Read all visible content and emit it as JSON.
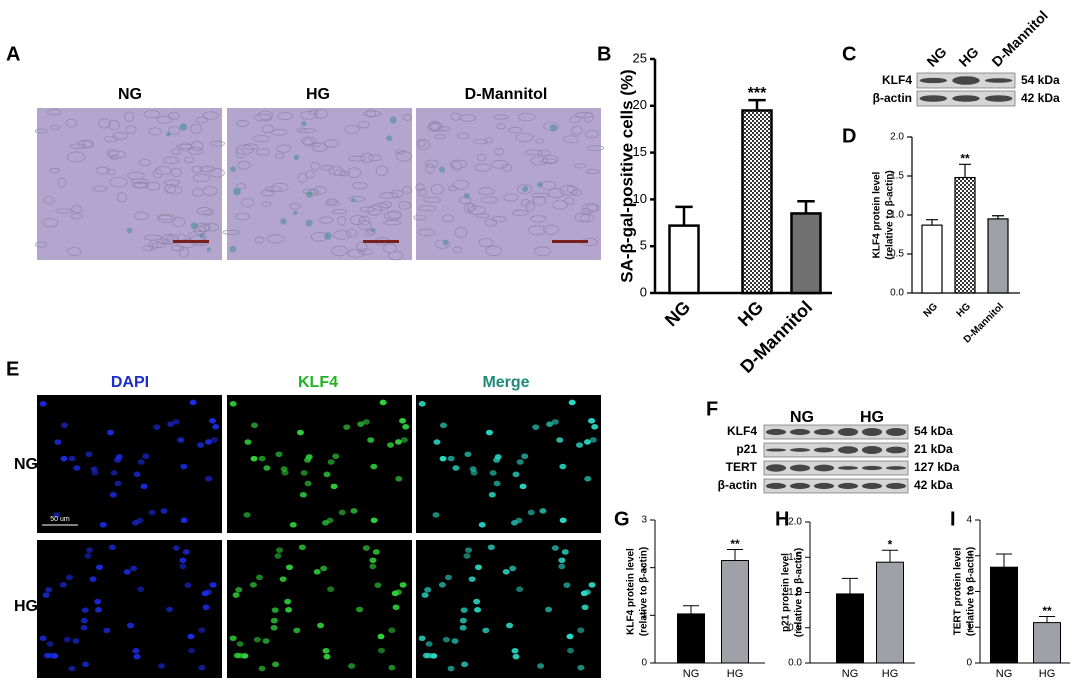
{
  "figure": {
    "A": {
      "label": "A",
      "titles": [
        "NG",
        "HG",
        "D-Mannitol"
      ]
    },
    "C": {
      "label": "C",
      "lanes": [
        "NG",
        "HG",
        "D-Mannitol"
      ],
      "bands": [
        "KLF4",
        "β-actin"
      ],
      "sizes": [
        "54 kDa",
        "42 kDa"
      ]
    },
    "E": {
      "label": "E",
      "stains": [
        "DAPI",
        "KLF4",
        "Merge"
      ],
      "rows": [
        "NG",
        "HG"
      ],
      "scale": "50 um"
    },
    "F": {
      "label": "F",
      "groups": [
        "NG",
        "HG"
      ],
      "bands": [
        "KLF4",
        "p21",
        "TERT",
        "β-actin"
      ],
      "sizes": [
        "54 kDa",
        "21 kDa",
        "127 kDa",
        "42 kDa"
      ]
    }
  },
  "chart_data": [
    {
      "type": "bar",
      "label": "B",
      "ylabel": [
        "SA-β-gal-positive cells (%)"
      ],
      "categories": [
        "NG",
        "HG",
        "D-Mannitol"
      ],
      "values": [
        7.2,
        19.5,
        8.5
      ],
      "errors": [
        2.0,
        1.1,
        1.3
      ],
      "colors": [
        "#ffffff",
        "#333333",
        "#707070"
      ],
      "patterns": [
        "solid",
        "checker",
        "solid"
      ],
      "significance": [
        null,
        "***",
        null
      ],
      "ylim": [
        0,
        25
      ],
      "yticks": [
        0,
        5,
        10,
        15,
        20,
        25
      ]
    },
    {
      "type": "bar",
      "label": "D",
      "ylabel": [
        "KLF4 protein level",
        "(relative to β-actin)"
      ],
      "categories": [
        "NG",
        "HG",
        "D-Mannitol"
      ],
      "values": [
        0.87,
        1.48,
        0.95
      ],
      "errors": [
        0.07,
        0.17,
        0.04
      ],
      "colors": [
        "#ffffff",
        "#333333",
        "#a0a0a8"
      ],
      "patterns": [
        "solid",
        "checker",
        "solid"
      ],
      "significance": [
        null,
        "**",
        null
      ],
      "ylim": [
        0,
        2
      ],
      "yticks": [
        {
          "value": 0,
          "label": "0.0"
        },
        {
          "value": 0.5,
          "label": "0.5"
        },
        {
          "value": 1,
          "label": "1.0"
        },
        {
          "value": 1.5,
          "label": "1.5"
        },
        {
          "value": 2,
          "label": "2.0"
        }
      ]
    },
    {
      "type": "bar",
      "label": "G",
      "ylabel": [
        "KLF4 protein level",
        "(relative to β-actin)"
      ],
      "categories": [
        "NG",
        "HG"
      ],
      "values": [
        1.03,
        2.15
      ],
      "errors": [
        0.17,
        0.23
      ],
      "colors": [
        "#000000",
        "#a0a0a8"
      ],
      "patterns": [
        "solid",
        "solid"
      ],
      "significance": [
        null,
        "**"
      ],
      "ylim": [
        0,
        3
      ],
      "yticks": [
        0,
        1,
        2,
        3
      ]
    },
    {
      "type": "bar",
      "label": "H",
      "ylabel": [
        "p21 protein level",
        "(relative to β-actin)"
      ],
      "categories": [
        "NG",
        "HG"
      ],
      "values": [
        0.98,
        1.43
      ],
      "errors": [
        0.22,
        0.17
      ],
      "colors": [
        "#000000",
        "#a0a0a8"
      ],
      "patterns": [
        "solid",
        "solid"
      ],
      "significance": [
        null,
        "*"
      ],
      "ylim": [
        0,
        2
      ],
      "yticks": [
        {
          "value": 0,
          "label": "0.0"
        },
        {
          "value": 0.5,
          "label": "0.5"
        },
        {
          "value": 1,
          "label": "1.0"
        },
        {
          "value": 1.5,
          "label": "1.5"
        },
        {
          "value": 2,
          "label": "2.0"
        }
      ]
    },
    {
      "type": "bar",
      "label": "I",
      "ylabel": [
        "TERT protein level",
        "(relative to β-actin)"
      ],
      "categories": [
        "NG",
        "HG"
      ],
      "values": [
        2.68,
        1.13
      ],
      "errors": [
        0.37,
        0.17
      ],
      "colors": [
        "#000000",
        "#a0a0a8"
      ],
      "patterns": [
        "solid",
        "solid"
      ],
      "significance": [
        null,
        "**"
      ],
      "ylim": [
        0,
        4
      ],
      "yticks": [
        0,
        1,
        2,
        3,
        4
      ]
    }
  ]
}
